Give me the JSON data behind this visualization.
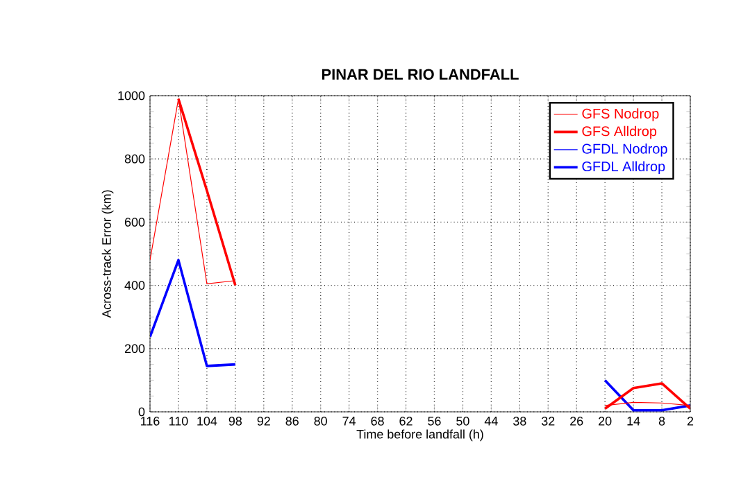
{
  "chart_data": {
    "type": "line",
    "title": "PINAR DEL RIO LANDFALL",
    "xlabel": "Time before landfall (h)",
    "ylabel": "Across-track Error (km)",
    "x": [
      116,
      110,
      104,
      98,
      59,
      20,
      14,
      8,
      2
    ],
    "series": [
      {
        "name": "GFS Nodrop",
        "color": "#ff0000",
        "values": [
          480,
          990,
          405,
          415,
          null,
          20,
          30,
          28,
          20
        ]
      },
      {
        "name": "GFS Alldrop",
        "color": "#ff0000",
        "values": [
          null,
          990,
          700,
          400,
          null,
          10,
          75,
          90,
          10
        ]
      },
      {
        "name": "GFDL Nodrop",
        "color": "#0000ff",
        "values": [
          null,
          null,
          null,
          null,
          null,
          null,
          null,
          null,
          null
        ]
      },
      {
        "name": "GFDL Alldrop",
        "color": "#0000ff",
        "values": [
          237,
          480,
          145,
          150,
          null,
          100,
          5,
          5,
          20
        ]
      }
    ],
    "xlim": [
      116,
      2
    ],
    "xticks": [
      116,
      110,
      104,
      98,
      92,
      86,
      80,
      74,
      68,
      62,
      56,
      50,
      44,
      38,
      32,
      26,
      20,
      14,
      8,
      2
    ],
    "ylim": [
      0,
      1000
    ],
    "yticks": [
      0,
      200,
      400,
      600,
      800,
      1000
    ],
    "grid": true,
    "legend": "top right",
    "line_style": "solid",
    "marker": "none"
  }
}
